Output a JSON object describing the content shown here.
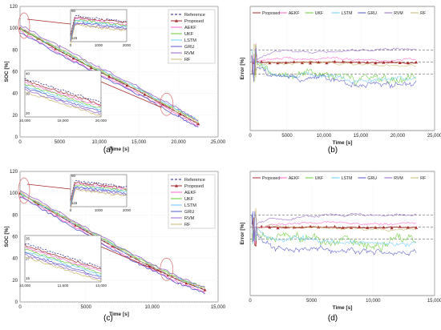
{
  "chart_data": [
    {
      "panel": "(a)",
      "type": "line",
      "xlabel": "Time [s]",
      "ylabel": "SOC [%]",
      "xlim": [
        0,
        25000
      ],
      "ylim": [
        0,
        120
      ],
      "xticks": [
        "0",
        "5000",
        "10,000",
        "15,000",
        "20,000",
        "25,000"
      ],
      "yticks": [
        "0",
        "20",
        "40",
        "60",
        "80",
        "100",
        "120"
      ],
      "legend": "top-right",
      "series": [
        {
          "name": "Reference",
          "color": "#1c1c8a",
          "style": "dash",
          "x": [
            0,
            5000,
            10000,
            15000,
            20000,
            22500
          ],
          "y": [
            100,
            79,
            60,
            42,
            22,
            12
          ]
        },
        {
          "name": "Proposed",
          "color": "#a52a2a",
          "style": "triangle",
          "x": [
            0,
            5000,
            10000,
            15000,
            20000,
            22500
          ],
          "y": [
            100,
            79,
            60,
            42,
            22,
            12
          ]
        },
        {
          "name": "AEKF",
          "color": "#ff66cc",
          "style": "line",
          "x": [
            0,
            5000,
            10000,
            15000,
            20000,
            22500
          ],
          "y": [
            97,
            77,
            58,
            40,
            20,
            10
          ]
        },
        {
          "name": "UKF",
          "color": "#66cc33",
          "style": "line",
          "x": [
            0,
            5000,
            10000,
            15000,
            20000,
            22500
          ],
          "y": [
            99,
            80,
            61,
            44,
            24,
            14
          ]
        },
        {
          "name": "LSTM",
          "color": "#66ccff",
          "style": "line",
          "x": [
            0,
            5000,
            10000,
            15000,
            20000,
            22500
          ],
          "y": [
            100,
            81,
            62,
            44,
            25,
            15
          ]
        },
        {
          "name": "GRU",
          "color": "#5555cc",
          "style": "line",
          "x": [
            0,
            5000,
            10000,
            15000,
            20000,
            22500
          ],
          "y": [
            96,
            76,
            57,
            39,
            19,
            9
          ]
        },
        {
          "name": "RVM",
          "color": "#9966cc",
          "style": "line",
          "x": [
            0,
            5000,
            10000,
            15000,
            20000,
            22500
          ],
          "y": [
            103,
            83,
            64,
            46,
            26,
            15
          ]
        },
        {
          "name": "RF",
          "color": "#c8b86a",
          "style": "line",
          "x": [
            0,
            5000,
            10000,
            15000,
            20000,
            22500
          ],
          "y": [
            101,
            81,
            62,
            43,
            23,
            13
          ]
        }
      ],
      "insets": [
        {
          "xticks": [
            "0",
            "1000",
            "2000"
          ],
          "yticks": [
            "115",
            "80"
          ]
        },
        {
          "xticks": [
            "16,000",
            "18,000",
            "20,000"
          ],
          "yticks": [
            "20",
            "30",
            "40"
          ]
        }
      ]
    },
    {
      "panel": "(b)",
      "type": "line",
      "xlabel": "Time [s]",
      "ylabel": "Error [%]",
      "xlim": [
        0,
        25000
      ],
      "xticks": [
        "0",
        "5000",
        "10,000",
        "15,000",
        "20,000",
        "25,000"
      ],
      "legend": "top",
      "series": [
        {
          "name": "Proposed",
          "color": "#a52a2a"
        },
        {
          "name": "AEKF",
          "color": "#ff66cc"
        },
        {
          "name": "UKF",
          "color": "#66cc33"
        },
        {
          "name": "LSTM",
          "color": "#66ccff"
        },
        {
          "name": "GRU",
          "color": "#5555cc"
        },
        {
          "name": "RVM",
          "color": "#9966cc"
        },
        {
          "name": "RF",
          "color": "#c8b86a"
        }
      ]
    },
    {
      "panel": "(c)",
      "type": "line",
      "xlabel": "Time [s]",
      "ylabel": "SOC [%]",
      "xlim": [
        0,
        15000
      ],
      "ylim": [
        0,
        120
      ],
      "xticks": [
        "0",
        "5000",
        "10,000",
        "15,000"
      ],
      "yticks": [
        "0",
        "20",
        "40",
        "60",
        "80",
        "100",
        "120"
      ],
      "legend": "top-right",
      "series": [
        {
          "name": "Reference",
          "color": "#1c1c8a",
          "style": "dash",
          "x": [
            0,
            3000,
            6000,
            9000,
            12000,
            14000
          ],
          "y": [
            100,
            79,
            58,
            38,
            20,
            11
          ]
        },
        {
          "name": "Proposed",
          "color": "#a52a2a",
          "style": "triangle",
          "x": [
            0,
            3000,
            6000,
            9000,
            12000,
            14000
          ],
          "y": [
            100,
            79,
            58,
            38,
            20,
            11
          ]
        },
        {
          "name": "AEKF",
          "color": "#ff66cc",
          "style": "line",
          "x": [
            0,
            3000,
            6000,
            9000,
            12000,
            14000
          ],
          "y": [
            98,
            77,
            56,
            36,
            18,
            9
          ]
        },
        {
          "name": "UKF",
          "color": "#66cc33",
          "style": "line",
          "x": [
            0,
            3000,
            6000,
            9000,
            12000,
            14000
          ],
          "y": [
            99,
            80,
            60,
            40,
            22,
            13
          ]
        },
        {
          "name": "LSTM",
          "color": "#66ccff",
          "style": "line",
          "x": [
            0,
            3000,
            6000,
            9000,
            12000,
            14000
          ],
          "y": [
            100,
            80,
            59,
            39,
            21,
            12
          ]
        },
        {
          "name": "GRU",
          "color": "#5555cc",
          "style": "line",
          "x": [
            0,
            3000,
            6000,
            9000,
            12000,
            14000
          ],
          "y": [
            97,
            76,
            55,
            35,
            17,
            8
          ]
        },
        {
          "name": "RVM",
          "color": "#9966cc",
          "style": "line",
          "x": [
            0,
            3000,
            6000,
            9000,
            12000,
            14000
          ],
          "y": [
            103,
            82,
            61,
            41,
            23,
            13
          ]
        },
        {
          "name": "RF",
          "color": "#c8b86a",
          "style": "line",
          "x": [
            0,
            3000,
            6000,
            9000,
            12000,
            14000
          ],
          "y": [
            101,
            80,
            59,
            39,
            21,
            12
          ]
        }
      ],
      "insets": [
        {
          "xticks": [
            "0",
            "1000",
            "2000"
          ],
          "yticks": [
            "115",
            "80"
          ]
        },
        {
          "xticks": [
            "10,000",
            "11,500",
            "13,000"
          ],
          "yticks": [
            "15",
            "27",
            "35"
          ]
        }
      ]
    },
    {
      "panel": "(d)",
      "type": "line",
      "xlabel": "Time [s]",
      "ylabel": "Error [%]",
      "xlim": [
        0,
        15000
      ],
      "xticks": [
        "0",
        "5000",
        "10,000",
        "15,000"
      ],
      "legend": "top",
      "series": [
        {
          "name": "Proposed",
          "color": "#a52a2a"
        },
        {
          "name": "AEKF",
          "color": "#ff66cc"
        },
        {
          "name": "UKF",
          "color": "#66cc33"
        },
        {
          "name": "LSTM",
          "color": "#66ccff"
        },
        {
          "name": "GRU",
          "color": "#5555cc"
        },
        {
          "name": "RVM",
          "color": "#9966cc"
        },
        {
          "name": "RF",
          "color": "#c8b86a"
        }
      ]
    }
  ]
}
